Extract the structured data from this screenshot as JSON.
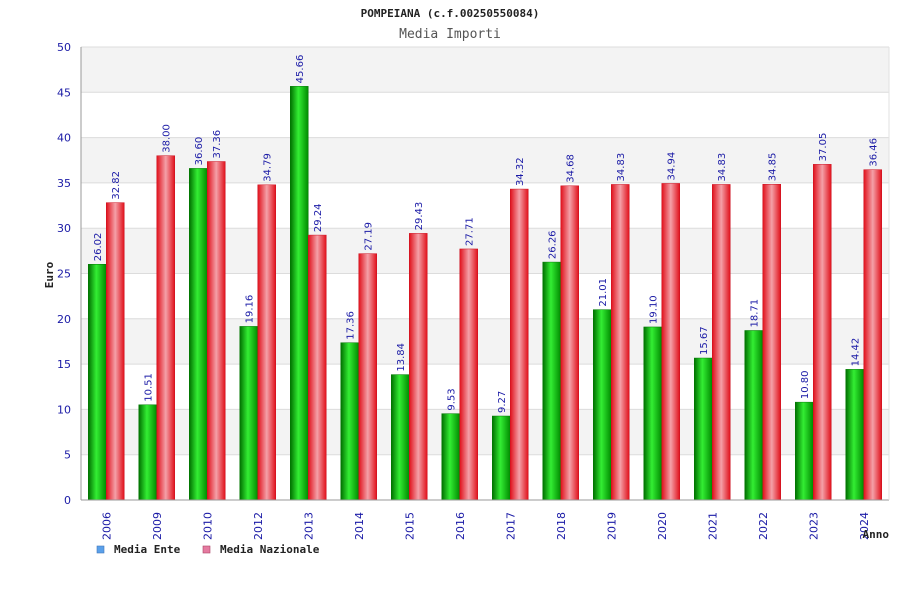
{
  "chart_data": {
    "type": "bar",
    "title": "POMPEIANA (c.f.00250550084)",
    "subtitle": "Media Importi",
    "xlabel": "Anno",
    "ylabel": "Euro",
    "ylim": [
      0,
      50
    ],
    "yticks": [
      "0",
      "5",
      "10",
      "15",
      "20",
      "25",
      "30",
      "35",
      "40",
      "45",
      "50"
    ],
    "grid": true,
    "legend_position": "bottom-left",
    "categories": [
      "2006",
      "2009",
      "2010",
      "2012",
      "2013",
      "2014",
      "2015",
      "2016",
      "2017",
      "2018",
      "2019",
      "2020",
      "2021",
      "2022",
      "2023",
      "2024"
    ],
    "series": [
      {
        "name": "Media Ente",
        "color": "#00b000",
        "legend_color": "#5aa0ea",
        "values": [
          26.02,
          10.51,
          36.6,
          19.16,
          45.66,
          17.36,
          13.84,
          9.53,
          9.27,
          26.26,
          21.01,
          19.1,
          15.67,
          18.71,
          10.8,
          14.42
        ],
        "labels": [
          "26.02",
          "10.51",
          "36.60",
          "19.16",
          "45.66",
          "17.36",
          "13.84",
          "9.53",
          "9.27",
          "26.26",
          "21.01",
          "19.10",
          "15.67",
          "18.71",
          "10.80",
          "14.42"
        ]
      },
      {
        "name": "Media Nazionale",
        "color": "#e0202a",
        "legend_color": "#e57aa0",
        "values": [
          32.82,
          38.0,
          37.36,
          34.79,
          29.24,
          27.19,
          29.43,
          27.71,
          34.32,
          34.68,
          34.83,
          34.94,
          34.83,
          34.85,
          37.05,
          36.46
        ],
        "labels": [
          "32.82",
          "38.00",
          "37.36",
          "34.79",
          "29.24",
          "27.19",
          "29.43",
          "27.71",
          "34.32",
          "34.68",
          "34.83",
          "34.94",
          "34.83",
          "34.85",
          "37.05",
          "36.46"
        ]
      }
    ]
  }
}
